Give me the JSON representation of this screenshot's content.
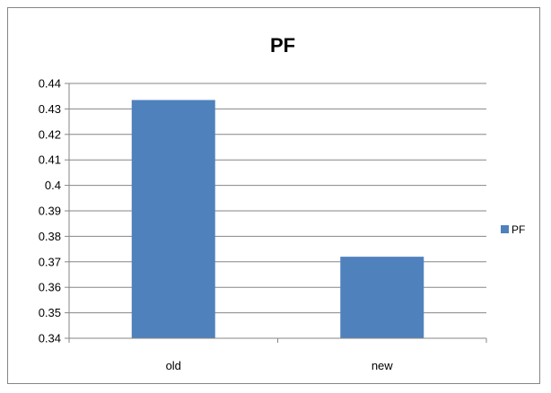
{
  "chart_data": {
    "type": "bar",
    "title": "PF",
    "categories": [
      "old",
      "new"
    ],
    "series": [
      {
        "name": "PF",
        "values": [
          0.4335,
          0.372
        ],
        "color": "#4f81bd"
      }
    ],
    "xlabel": "",
    "ylabel": "",
    "ylim": [
      0.34,
      0.44
    ],
    "yticks": [
      0.34,
      0.35,
      0.36,
      0.37,
      0.38,
      0.39,
      0.4,
      0.41,
      0.42,
      0.43,
      0.44
    ],
    "ytick_labels": [
      "0.34",
      "0.35",
      "0.36",
      "0.37",
      "0.38",
      "0.39",
      "0.4",
      "0.41",
      "0.42",
      "0.43",
      "0.44"
    ],
    "grid": true,
    "legend_position": "right",
    "axis_color": "#868686",
    "grid_color": "#868686"
  }
}
